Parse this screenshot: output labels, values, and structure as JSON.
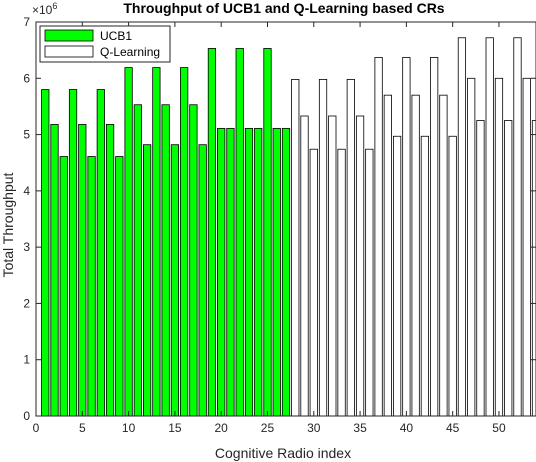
{
  "chart_data": {
    "type": "bar",
    "title": "Throughput of UCB1 and Q-Learning based CRs",
    "xlabel": "Cognitive Radio index",
    "ylabel": "Total Throughput",
    "y_scale_label": "×10",
    "y_scale_exponent": "6",
    "xlim": [
      0,
      54
    ],
    "ylim": [
      0,
      7
    ],
    "xticks": [
      0,
      5,
      10,
      15,
      20,
      25,
      30,
      35,
      40,
      45,
      50
    ],
    "yticks": [
      0,
      1,
      2,
      3,
      4,
      5,
      6,
      7
    ],
    "grid": false,
    "legend_position": "top-left",
    "series": [
      {
        "name": "UCB1",
        "color": "#00ff00",
        "x": [
          1,
          2,
          3,
          4,
          5,
          6,
          7,
          8,
          9,
          10,
          11,
          12,
          13,
          14,
          15,
          16,
          17,
          18,
          19,
          20,
          21,
          22,
          23,
          24,
          25,
          26,
          27
        ],
        "values": [
          5.8,
          5.18,
          4.61,
          5.8,
          5.18,
          4.61,
          5.8,
          5.18,
          4.61,
          6.19,
          5.53,
          4.82,
          6.19,
          5.53,
          4.82,
          6.19,
          5.53,
          4.82,
          6.53,
          5.11,
          5.11,
          6.53,
          5.11,
          5.11,
          6.53,
          5.11,
          5.11
        ]
      },
      {
        "name": "Q-Learning",
        "color": "#ffffff",
        "x": [
          28,
          29,
          30,
          31,
          32,
          33,
          34,
          35,
          36,
          37,
          38,
          39,
          40,
          41,
          42,
          43,
          44,
          45,
          46,
          47,
          48,
          49,
          50,
          51,
          52,
          53,
          54
        ],
        "values": [
          5.98,
          5.33,
          4.74,
          5.98,
          5.33,
          4.74,
          5.98,
          5.33,
          4.74,
          6.37,
          5.7,
          4.97,
          6.37,
          5.7,
          4.97,
          6.37,
          5.7,
          4.97,
          6.72,
          6.0,
          5.25,
          6.72,
          6.0,
          5.25,
          6.72,
          6.0,
          5.25
        ]
      }
    ]
  }
}
